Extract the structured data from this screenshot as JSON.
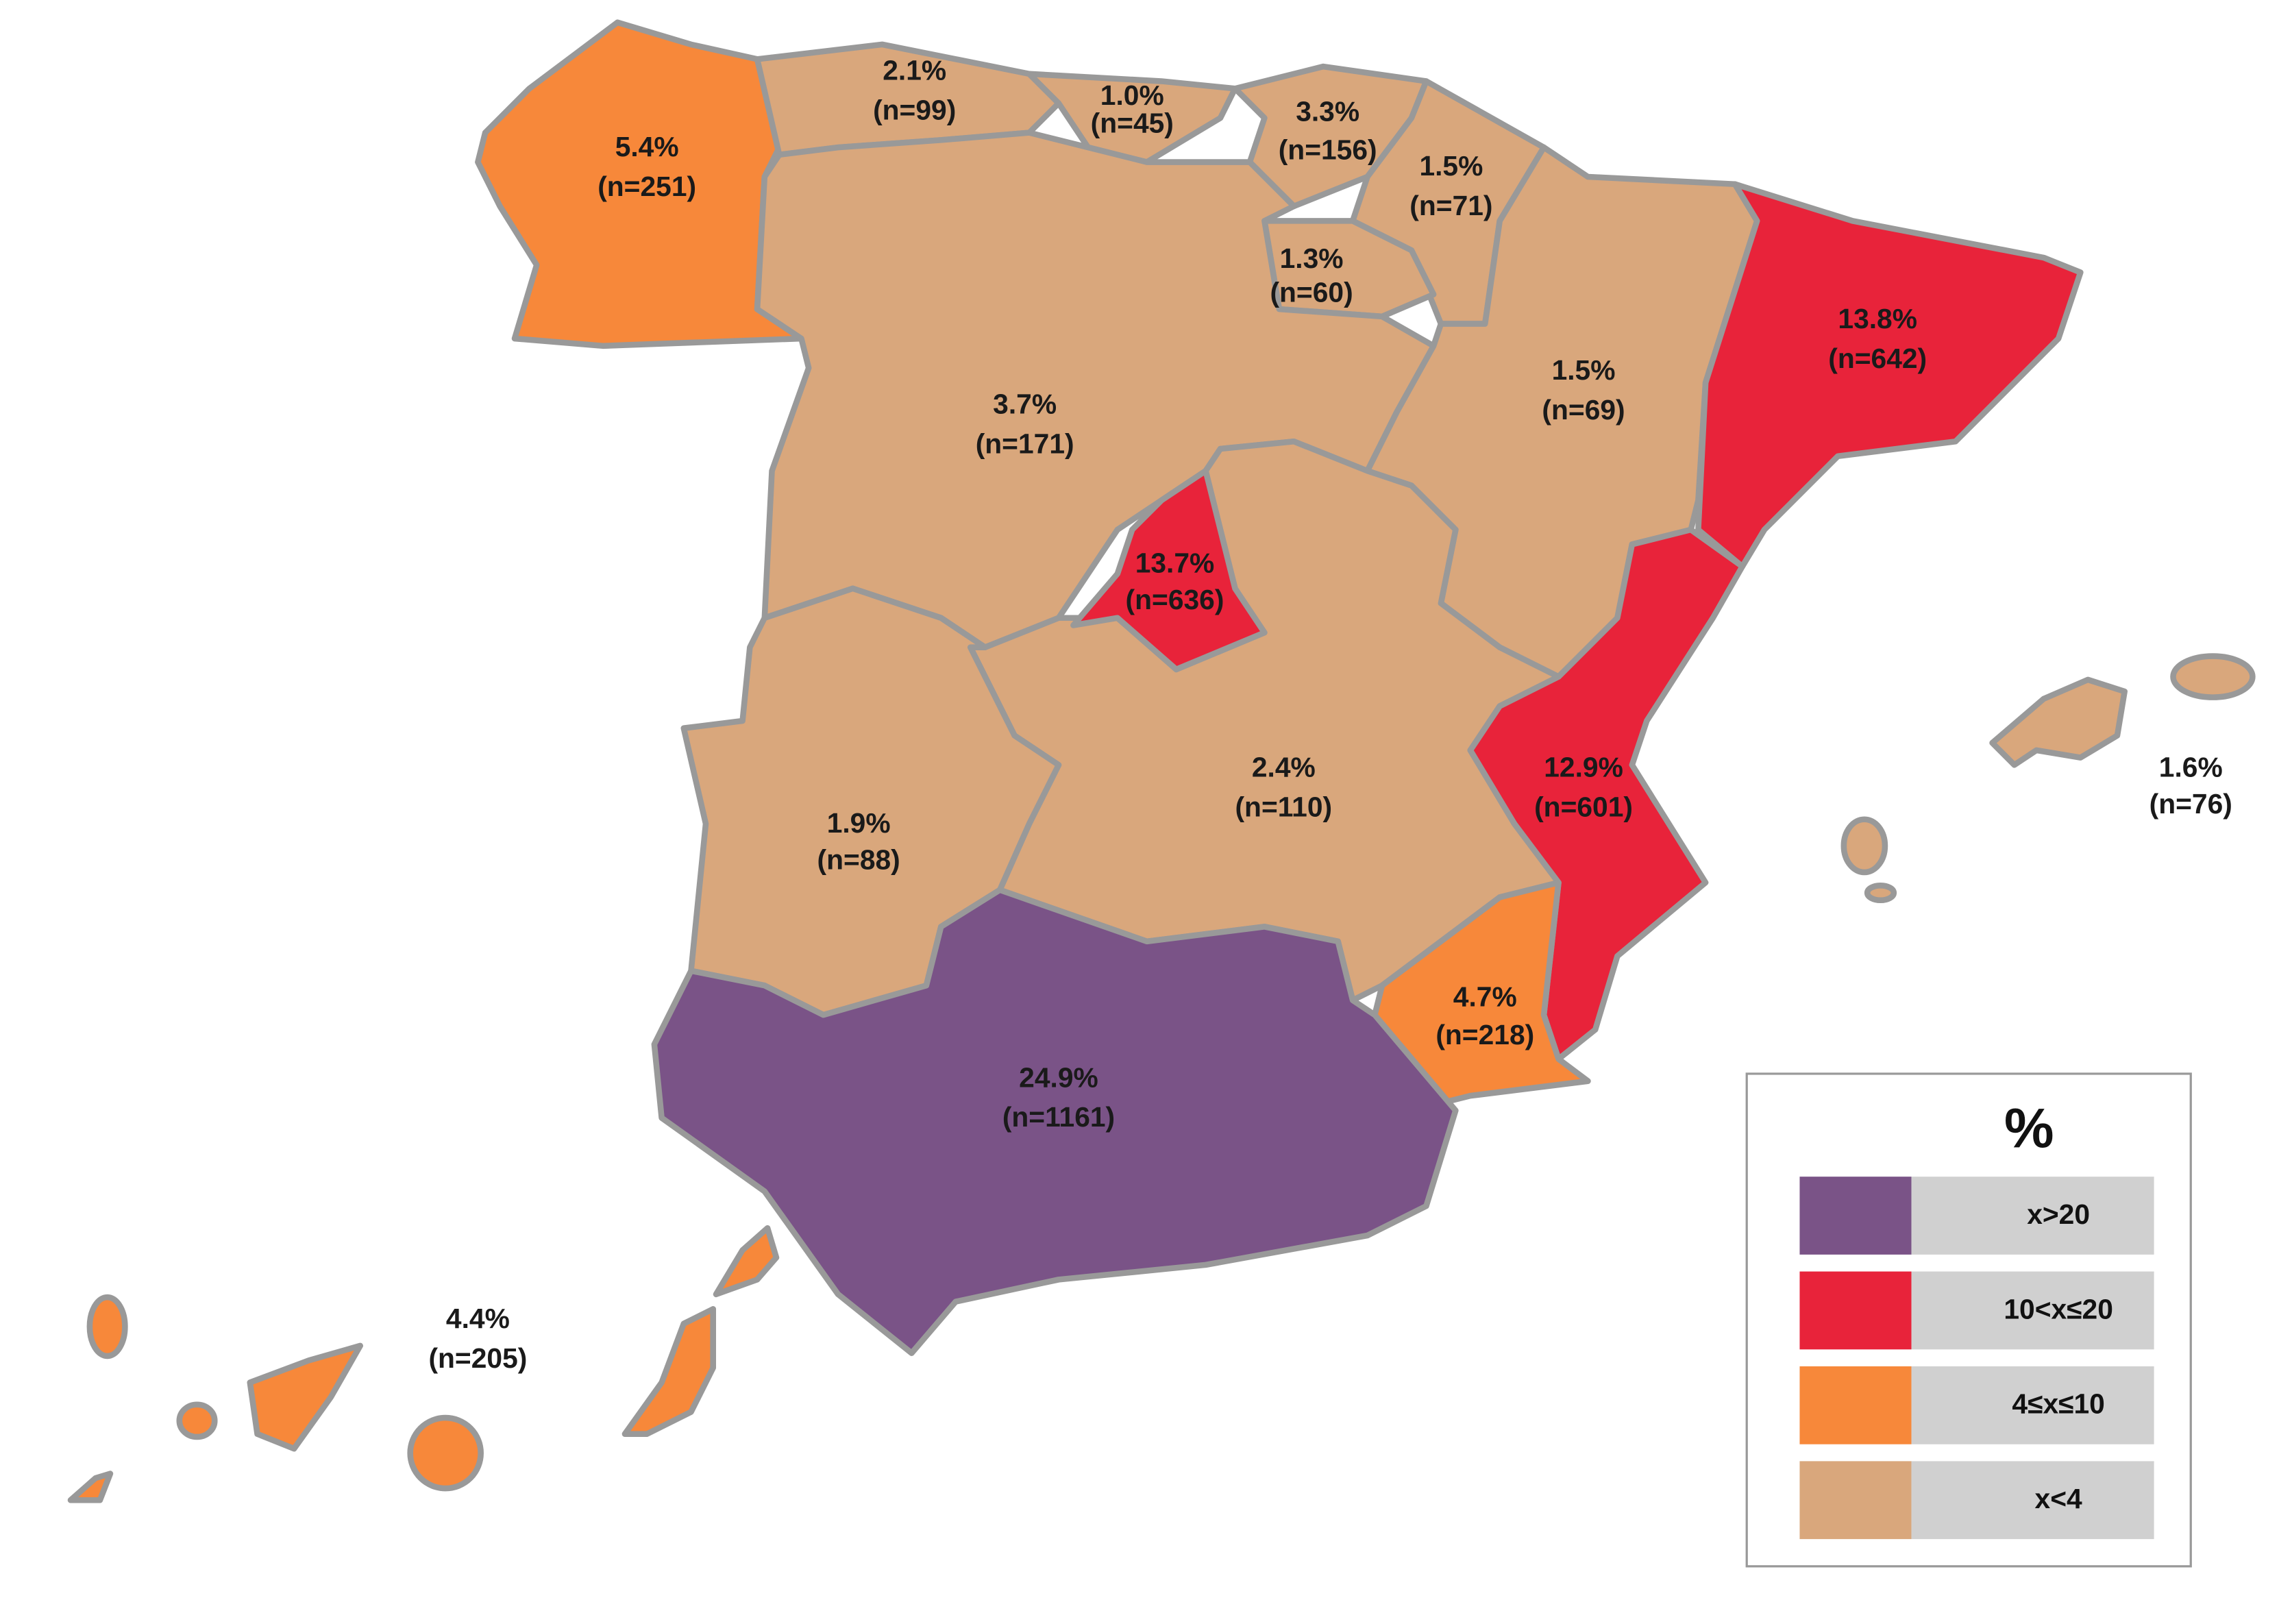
{
  "regions": [
    {
      "percent": "5.4%",
      "count": "(n=251)",
      "color": "#f7883a"
    },
    {
      "percent": "2.1%",
      "count": "(n=99)",
      "color": "#d9a77c"
    },
    {
      "percent": "1.0%",
      "count": "(n=45)",
      "color": "#d9a77c"
    },
    {
      "percent": "3.3%",
      "count": "(n=156)",
      "color": "#d9a77c"
    },
    {
      "percent": "1.5%",
      "count": "(n=71)",
      "color": "#d9a77c"
    },
    {
      "percent": "1.3%",
      "count": "(n=60)",
      "color": "#d9a77c"
    },
    {
      "percent": "3.7%",
      "count": "(n=171)",
      "color": "#d9a77c"
    },
    {
      "percent": "1.5%",
      "count": "(n=69)",
      "color": "#d9a77c"
    },
    {
      "percent": "13.8%",
      "count": "(n=642)",
      "color": "#e8233a"
    },
    {
      "percent": "13.7%",
      "count": "(n=636)",
      "color": "#e8233a"
    },
    {
      "percent": "2.4%",
      "count": "(n=110)",
      "color": "#d9a77c"
    },
    {
      "percent": "1.9%",
      "count": "(n=88)",
      "color": "#d9a77c"
    },
    {
      "percent": "12.9%",
      "count": "(n=601)",
      "color": "#e8233a"
    },
    {
      "percent": "4.7%",
      "count": "(n=218)",
      "color": "#f7883a"
    },
    {
      "percent": "24.9%",
      "count": "(n=1161)",
      "color": "#7a5387"
    },
    {
      "percent": "1.6%",
      "count": "(n=76)",
      "color": "#d9a77c"
    },
    {
      "percent": "4.4%",
      "count": "(n=205)",
      "color": "#f7883a"
    }
  ],
  "legend": {
    "title": "%",
    "items": [
      {
        "label": "x>20",
        "color": "#7a5387"
      },
      {
        "label": "10<x≤20",
        "color": "#e8233a"
      },
      {
        "label": "4≤x≤10",
        "color": "#f7883a"
      },
      {
        "label": "x<4",
        "color": "#d9a77c"
      }
    ]
  }
}
